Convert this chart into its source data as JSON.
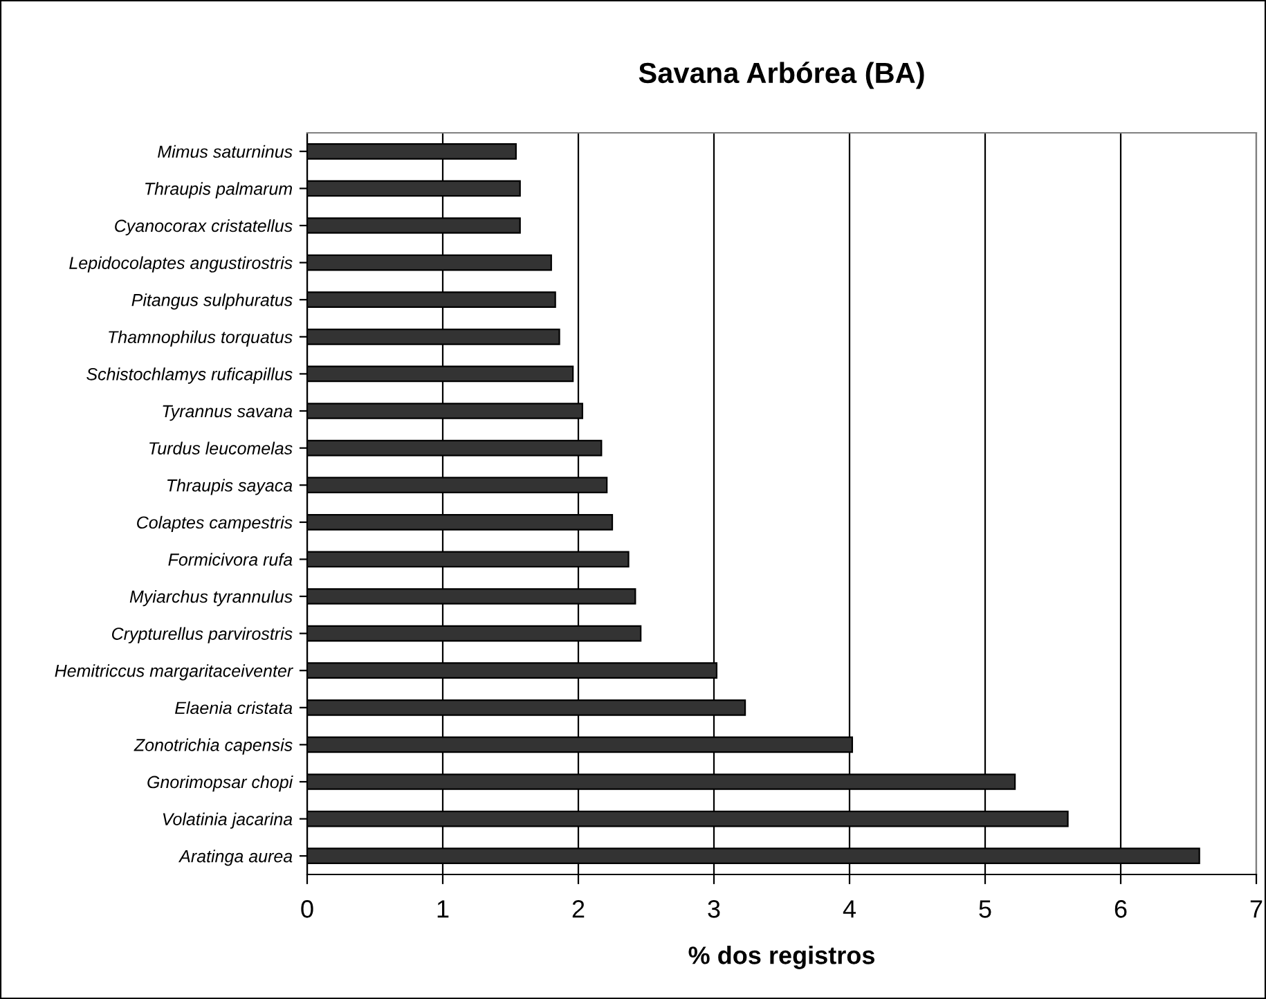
{
  "chart_data": {
    "type": "bar",
    "orientation": "horizontal",
    "title": "Savana Arbórea (BA)",
    "xlabel": "% dos registros",
    "categories": [
      "Mimus saturninus",
      "Thraupis palmarum",
      "Cyanocorax cristatellus",
      "Lepidocolaptes angustirostris",
      "Pitangus sulphuratus",
      "Thamnophilus torquatus",
      "Schistochlamys ruficapillus",
      "Tyrannus savana",
      "Turdus leucomelas",
      "Thraupis sayaca",
      "Colaptes campestris",
      "Formicivora rufa",
      "Myiarchus tyrannulus",
      "Crypturellus parvirostris",
      "Hemitriccus margaritaceiventer",
      "Elaenia cristata",
      "Zonotrichia capensis",
      "Gnorimopsar chopi",
      "Volatinia jacarina",
      "Aratinga aurea"
    ],
    "values": [
      1.54,
      1.57,
      1.57,
      1.8,
      1.83,
      1.86,
      1.96,
      2.03,
      2.17,
      2.21,
      2.25,
      2.37,
      2.42,
      2.46,
      3.02,
      3.23,
      4.02,
      5.22,
      5.61,
      6.58
    ],
    "color": "#333333",
    "xlim": [
      0,
      7
    ],
    "xticks": [
      0,
      1,
      2,
      3,
      4,
      5,
      6,
      7
    ],
    "grid": "x",
    "legend": false
  }
}
